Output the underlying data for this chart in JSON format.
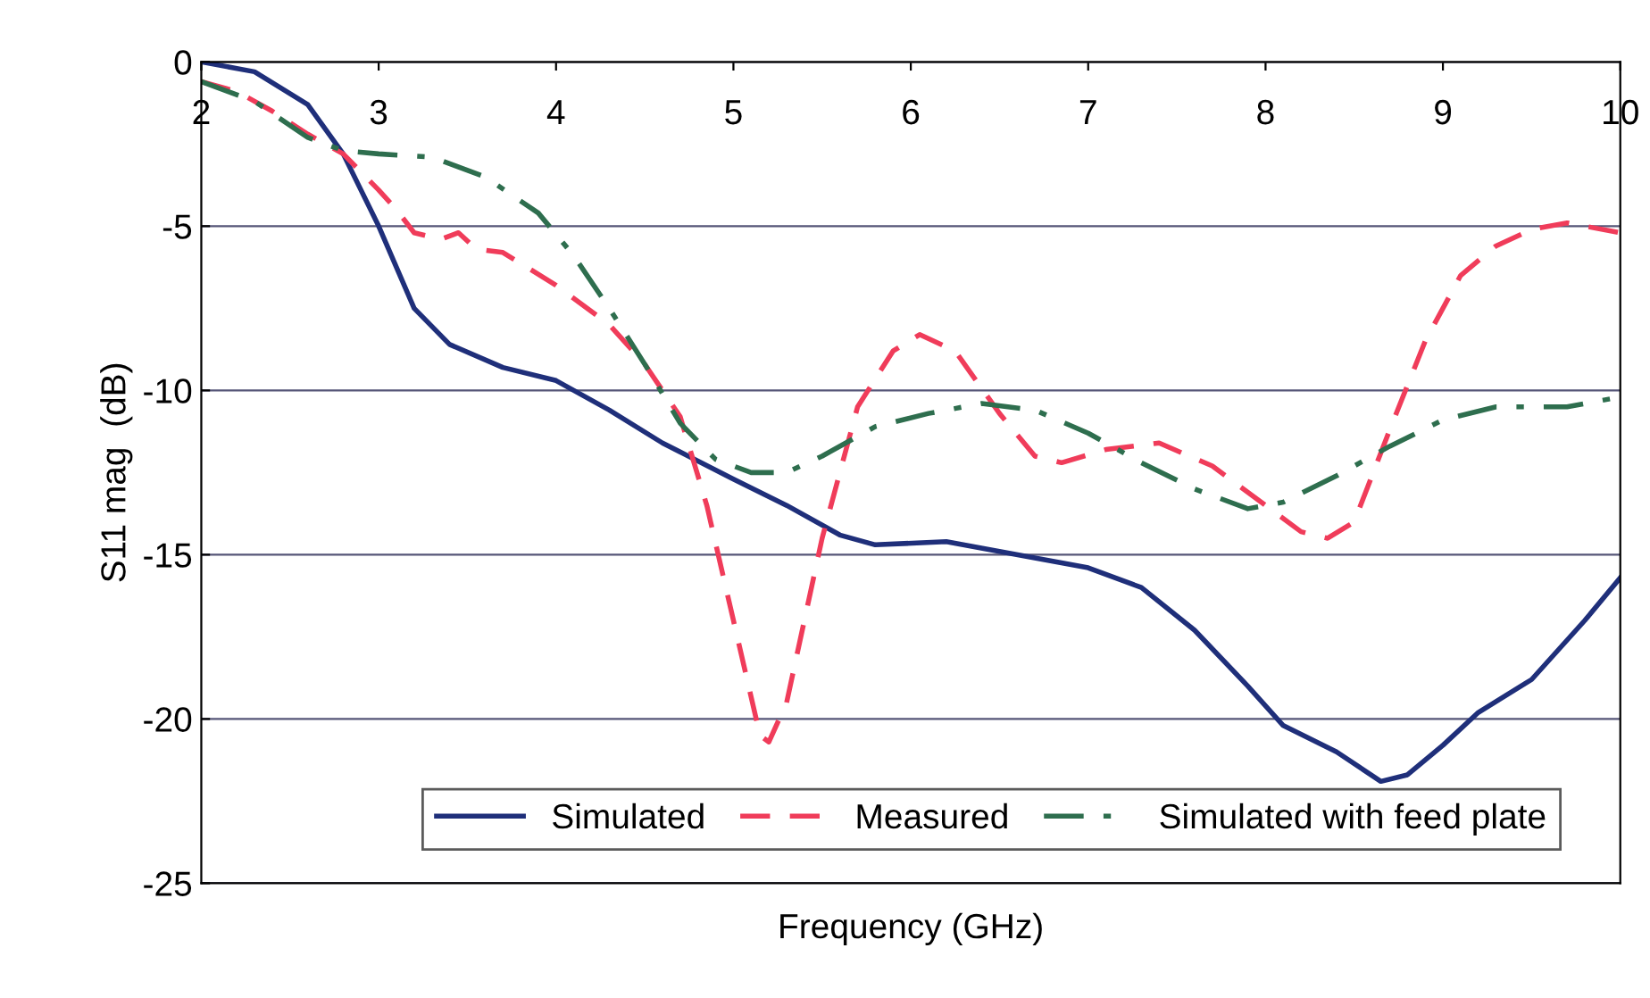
{
  "chart_data": {
    "type": "line",
    "xlabel": "Frequency (GHz)",
    "ylabel": "S11 mag  (dB)",
    "xlim": [
      2,
      10
    ],
    "xticks": [
      2,
      3,
      4,
      5,
      6,
      7,
      8,
      9,
      10
    ],
    "ylim": [
      -25,
      0
    ],
    "yticks": [
      -25,
      -20,
      -15,
      -10,
      -5,
      0
    ],
    "grid": "y",
    "legend": "bottom right",
    "series": [
      {
        "name": "Simulated",
        "color": "#1f2f7a",
        "line_style": "solid",
        "x": [
          2.0,
          2.3,
          2.6,
          2.8,
          3.0,
          3.2,
          3.4,
          3.7,
          4.0,
          4.3,
          4.6,
          5.0,
          5.3,
          5.6,
          5.8,
          6.2,
          6.5,
          7.0,
          7.3,
          7.6,
          7.9,
          8.1,
          8.4,
          8.65,
          8.8,
          9.0,
          9.2,
          9.5,
          9.8,
          10.0
        ],
        "values": [
          0,
          -0.3,
          -1.3,
          -2.8,
          -5,
          -7.5,
          -8.6,
          -9.3,
          -9.7,
          -10.6,
          -11.6,
          -12.7,
          -13.5,
          -14.4,
          -14.7,
          -14.6,
          -14.9,
          -15.4,
          -16.0,
          -17.3,
          -19.0,
          -20.2,
          -21.0,
          -21.9,
          -21.7,
          -20.8,
          -19.8,
          -18.8,
          -17.0,
          -15.7
        ]
      },
      {
        "name": "Measured",
        "color": "#f03c5a",
        "line_style": "dashed",
        "x": [
          2.0,
          2.2,
          2.4,
          2.6,
          2.8,
          3.0,
          3.1,
          3.2,
          3.35,
          3.45,
          3.55,
          3.7,
          4.0,
          4.3,
          4.5,
          4.7,
          4.85,
          5.0,
          5.15,
          5.2,
          5.3,
          5.5,
          5.7,
          5.9,
          6.05,
          6.25,
          6.5,
          6.7,
          6.85,
          7.1,
          7.4,
          7.7,
          8.0,
          8.2,
          8.35,
          8.5,
          8.7,
          8.9,
          9.1,
          9.3,
          9.5,
          9.7,
          10.0
        ],
        "values": [
          -0.6,
          -0.9,
          -1.5,
          -2.2,
          -2.8,
          -3.9,
          -4.5,
          -5.2,
          -5.4,
          -5.2,
          -5.7,
          -5.8,
          -6.8,
          -8.0,
          -9.2,
          -10.8,
          -13.5,
          -17.0,
          -20.5,
          -20.7,
          -19.5,
          -14.5,
          -10.5,
          -8.8,
          -8.3,
          -8.8,
          -10.7,
          -12.0,
          -12.2,
          -11.8,
          -11.6,
          -12.3,
          -13.5,
          -14.3,
          -14.5,
          -14.0,
          -11.2,
          -8.5,
          -6.5,
          -5.6,
          -5.1,
          -4.9,
          -5.2
        ]
      },
      {
        "name": "Simulated with feed plate",
        "color": "#2e6e4e",
        "line_style": "dashdot",
        "x": [
          2.0,
          2.3,
          2.6,
          2.8,
          3.0,
          3.3,
          3.6,
          3.9,
          4.1,
          4.3,
          4.5,
          4.7,
          4.9,
          5.1,
          5.3,
          5.5,
          5.8,
          6.1,
          6.4,
          6.7,
          7.0,
          7.3,
          7.6,
          7.9,
          8.1,
          8.4,
          8.7,
          9.0,
          9.3,
          9.7,
          10.0
        ],
        "values": [
          -0.6,
          -1.2,
          -2.3,
          -2.7,
          -2.8,
          -2.9,
          -3.5,
          -4.6,
          -5.9,
          -7.5,
          -9.2,
          -11.0,
          -12.1,
          -12.5,
          -12.5,
          -12.0,
          -11.1,
          -10.7,
          -10.4,
          -10.6,
          -11.3,
          -12.2,
          -13.0,
          -13.6,
          -13.4,
          -12.6,
          -11.7,
          -10.9,
          -10.5,
          -10.5,
          -10.2
        ]
      }
    ]
  }
}
